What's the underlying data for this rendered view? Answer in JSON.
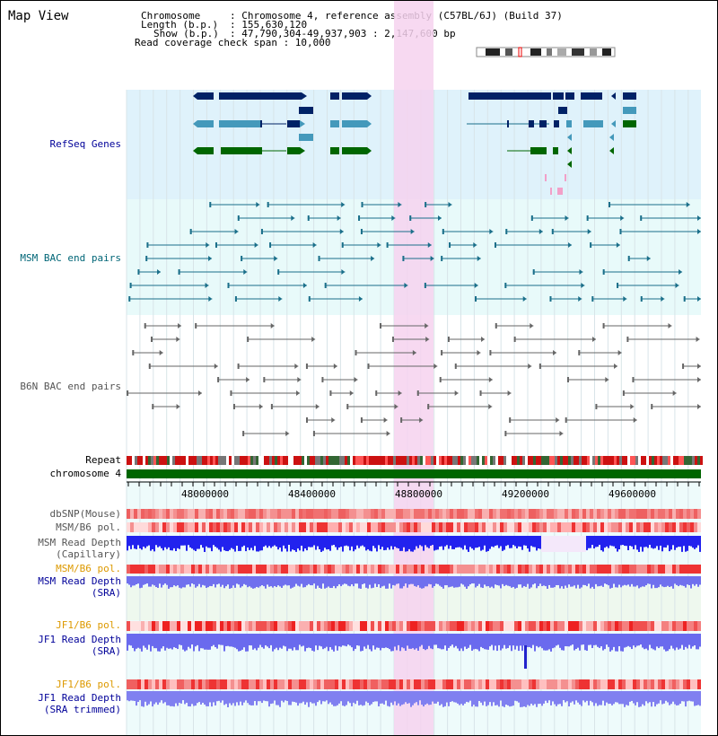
{
  "title": "Map View",
  "header": {
    "chromosome_label": "Chromosome",
    "chromosome_value": ": Chromosome 4, reference assembly (C57BL/6J) (Build 37)",
    "length_label": "Length (b.p.)",
    "length_value": ": 155,630,120",
    "show_label": "Show (b.p.)",
    "show_value": ": 47,790,304-49,937,903 : 2,147,600 bp",
    "coverage_label": "Read coverage check span : 10,000"
  },
  "tracks": {
    "refseq": "RefSeq Genes",
    "msm_bac": "MSM BAC end pairs",
    "b6n_bac": "B6N BAC end pairs",
    "repeat": "Repeat",
    "chromosome": "chromosome 4",
    "dbsnp": "dbSNP(Mouse)",
    "msm_b6_pol_1": "MSM/B6 pol.",
    "msm_depth_cap_1": "MSM Read Depth",
    "msm_depth_cap_2": "(Capillary)",
    "msm_b6_pol_2": "MSM/B6 pol.",
    "msm_depth_sra_1": "MSM Read Depth",
    "msm_depth_sra_2": "(SRA)",
    "jf1_b6_pol_1": "JF1/B6 pol.",
    "jf1_depth_sra_1": "JF1 Read Depth",
    "jf1_depth_sra_2": "(SRA)",
    "jf1_b6_pol_2": "JF1/B6 pol.",
    "jf1_depth_trim_1": "JF1 Read Depth",
    "jf1_depth_trim_2": "(SRA trimmed)"
  },
  "axis": {
    "ticks": [
      "48000000",
      "48400000",
      "48800000",
      "49200000",
      "49600000"
    ]
  },
  "colors": {
    "refseq_bg": "#dff2fb",
    "bac_bg": "#e8fafa",
    "highlight": "#f8d8f0",
    "refseq_dark": "#002266",
    "refseq_mid": "#4499bb",
    "refseq_green": "#006600",
    "msm_bac": "#1a6f8a",
    "b6n_bac": "#666666",
    "chromosome_bar": "#006600",
    "depth_blue": "#3333ee",
    "depth_light": "#8080f0"
  }
}
